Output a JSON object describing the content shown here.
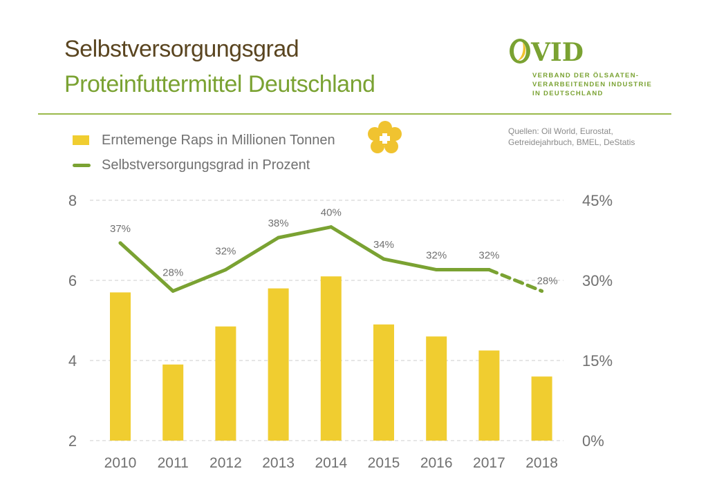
{
  "header": {
    "title_line1": "Selbstversorgungsgrad",
    "title_line2": "Proteinfuttermittel Deutschland"
  },
  "logo": {
    "wordmark": "OVID",
    "subtitle_lines": [
      "VERBAND DER ÖLSAATEN-",
      "VERARBEITENDEN INDUSTRIE",
      "IN DEUTSCHLAND"
    ]
  },
  "legend": {
    "items": [
      {
        "label": "Erntemenge Raps in Millionen Tonnen",
        "type": "bar",
        "icon": "yellow-rectangle"
      },
      {
        "label": "Selbstversorgungsgrad in Prozent",
        "type": "line",
        "icon": "green-line"
      }
    ],
    "decoration_icon": "rapeseed-flower-icon"
  },
  "sources": {
    "line1": "Quellen: Oil World, Eurostat,",
    "line2": "Getreidejahrbuch, BMEL, DeStatis"
  },
  "colors": {
    "bar": "#f0cd30",
    "line": "#7aa232",
    "title_dark": "#5a4520",
    "title_green": "#7aa232",
    "grid": "#cccccc",
    "text": "#707070"
  },
  "chart_data": {
    "type": "bar+line",
    "title": "Selbstversorgungsgrad Proteinfuttermittel Deutschland",
    "categories": [
      "2010",
      "2011",
      "2012",
      "2013",
      "2014",
      "2015",
      "2016",
      "2017",
      "2018"
    ],
    "series": [
      {
        "name": "Erntemenge Raps in Millionen Tonnen",
        "type": "bar",
        "axis": "left",
        "values": [
          5.7,
          3.9,
          4.85,
          5.8,
          6.1,
          4.9,
          4.6,
          4.25,
          3.6
        ]
      },
      {
        "name": "Selbstversorgungsgrad in Prozent",
        "type": "line",
        "axis": "right",
        "values": [
          37,
          28,
          32,
          38,
          40,
          34,
          32,
          32,
          28
        ],
        "labels": [
          "37%",
          "28%",
          "32%",
          "38%",
          "40%",
          "34%",
          "32%",
          "32%",
          "28%"
        ],
        "dashed_last_segment": true
      }
    ],
    "left_axis": {
      "ylim": [
        2,
        8
      ],
      "ticks": [
        "2",
        "4",
        "6",
        "8"
      ],
      "tick_values": [
        2,
        4,
        6,
        8
      ]
    },
    "right_axis": {
      "ylim": [
        0,
        45
      ],
      "ticks": [
        "0%",
        "15%",
        "30%",
        "45%"
      ],
      "tick_values": [
        0,
        15,
        30,
        45
      ]
    },
    "xlabel": "",
    "ylabel": "",
    "grid": true,
    "legend_position": "top-left"
  }
}
